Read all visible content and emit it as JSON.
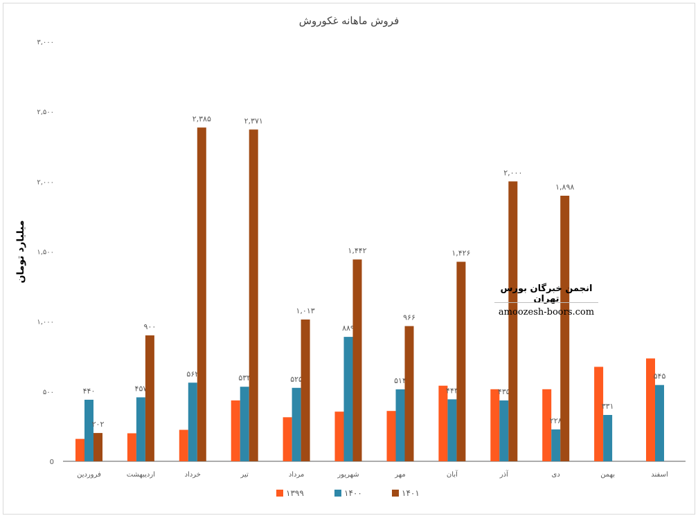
{
  "chart_data": {
    "type": "bar",
    "title": "فروش ماهانه غکوروش",
    "ylabel": "میلیارد تومان",
    "xlabel": "",
    "ylim": [
      0,
      3000
    ],
    "yticks": [
      0,
      500,
      1000,
      1500,
      2000,
      2500,
      3000
    ],
    "ytick_labels": [
      "0",
      "۵۰۰",
      "۱,۰۰۰",
      "۱,۵۰۰",
      "۲,۰۰۰",
      "۲,۵۰۰",
      "۳,۰۰۰"
    ],
    "categories": [
      "فروردین",
      "اردیبهشت",
      "خرداد",
      "تیر",
      "مرداد",
      "شهریور",
      "مهر",
      "آبان",
      "آذر",
      "دی",
      "بهمن",
      "اسفند"
    ],
    "series": [
      {
        "name": "۱۳۹۹",
        "color": "#ff5a1f",
        "values": [
          160,
          200,
          225,
          435,
          315,
          355,
          360,
          540,
          515,
          515,
          675,
          735
        ],
        "labels": [
          null,
          null,
          null,
          null,
          null,
          null,
          null,
          null,
          null,
          null,
          null,
          null
        ]
      },
      {
        "name": "۱۴۰۰",
        "color": "#2e87a8",
        "values": [
          440,
          457,
          562,
          533,
          525,
          889,
          514,
          443,
          435,
          228,
          331,
          545
        ],
        "labels": [
          "۴۴۰",
          "۴۵۷",
          "۵۶۲",
          "۵۳۳",
          "۵۲۵",
          "۸۸۹",
          "۵۱۴",
          "۴۴۳",
          "۴۳۵",
          "۲۲۸",
          "۳۳۱",
          "۵۴۵"
        ]
      },
      {
        "name": "۱۴۰۱",
        "color": "#a04a14",
        "values": [
          202,
          900,
          2385,
          2371,
          1013,
          1442,
          966,
          1426,
          2000,
          1898,
          null,
          null
        ],
        "labels": [
          "۲۰۲",
          "۹۰۰",
          "۲,۳۸۵",
          "۲,۳۷۱",
          "۱,۰۱۳",
          "۱,۴۴۲",
          "۹۶۶",
          "۱,۴۲۶",
          "۲,۰۰۰",
          "۱,۸۹۸",
          null,
          null
        ]
      }
    ],
    "legend_position": "bottom",
    "grid": false
  },
  "watermark": {
    "title": "انجمن خبرگان بورس تهران",
    "url": "amoozesh-boors.com"
  }
}
